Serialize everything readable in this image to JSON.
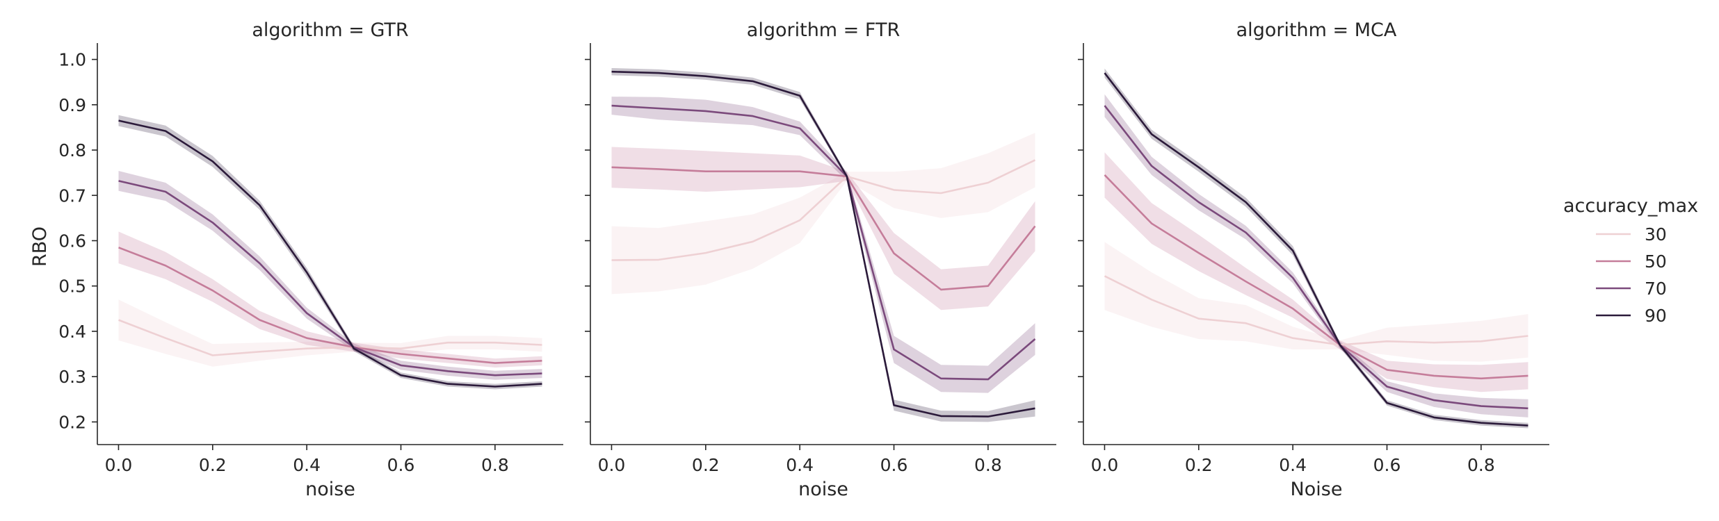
{
  "chart_data": {
    "type": "line",
    "x_name": "noise",
    "y_name": "RBO",
    "hue_name": "accuracy_max",
    "x": [
      0.0,
      0.1,
      0.2,
      0.3,
      0.4,
      0.5,
      0.6,
      0.7,
      0.8,
      0.9
    ],
    "ylim": [
      0.15,
      1.03
    ],
    "xlim": [
      -0.045,
      0.945
    ],
    "y_ticks": [
      0.2,
      0.3,
      0.4,
      0.5,
      0.6,
      0.7,
      0.8,
      0.9,
      1.0
    ],
    "y_tick_labels": [
      "0.2",
      "0.3",
      "0.4",
      "0.5",
      "0.6",
      "0.7",
      "0.8",
      "0.9",
      "1.0"
    ],
    "x_ticks": [
      0.0,
      0.2,
      0.4,
      0.6,
      0.8
    ],
    "x_tick_labels": [
      "0.0",
      "0.2",
      "0.4",
      "0.6",
      "0.8"
    ],
    "ylabel": "RBO",
    "legend": {
      "title": "accuracy_max",
      "placement": "right",
      "entries": [
        {
          "label": "30",
          "color": "#eed0d3"
        },
        {
          "label": "50",
          "color": "#c57d9a"
        },
        {
          "label": "70",
          "color": "#7b4a7c"
        },
        {
          "label": "90",
          "color": "#2b1a3a"
        }
      ]
    },
    "panels": [
      {
        "title": "algorithm = GTR",
        "xlabel": "noise",
        "series": [
          {
            "name": "30",
            "values": [
              0.425,
              0.385,
              0.347,
              0.355,
              0.362,
              0.365,
              0.362,
              0.375,
              0.375,
              0.37
            ],
            "band": [
              0.045,
              0.035,
              0.025,
              0.02,
              0.015,
              0.01,
              0.012,
              0.015,
              0.015,
              0.015
            ]
          },
          {
            "name": "50",
            "values": [
              0.585,
              0.545,
              0.49,
              0.425,
              0.385,
              0.365,
              0.35,
              0.34,
              0.33,
              0.335
            ],
            "band": [
              0.035,
              0.03,
              0.025,
              0.02,
              0.015,
              0.01,
              0.01,
              0.01,
              0.01,
              0.01
            ]
          },
          {
            "name": "70",
            "values": [
              0.732,
              0.708,
              0.64,
              0.55,
              0.44,
              0.365,
              0.325,
              0.312,
              0.303,
              0.307
            ],
            "band": [
              0.022,
              0.02,
              0.018,
              0.015,
              0.012,
              0.008,
              0.01,
              0.01,
              0.01,
              0.01
            ]
          },
          {
            "name": "90",
            "values": [
              0.865,
              0.842,
              0.775,
              0.678,
              0.53,
              0.362,
              0.303,
              0.284,
              0.278,
              0.284
            ],
            "band": [
              0.012,
              0.012,
              0.012,
              0.01,
              0.01,
              0.006,
              0.006,
              0.006,
              0.006,
              0.006
            ]
          }
        ]
      },
      {
        "title": "algorithm = FTR",
        "xlabel": "noise",
        "series": [
          {
            "name": "30",
            "values": [
              0.557,
              0.558,
              0.573,
              0.598,
              0.645,
              0.742,
              0.712,
              0.705,
              0.728,
              0.778
            ],
            "band": [
              0.075,
              0.07,
              0.07,
              0.06,
              0.05,
              0.01,
              0.04,
              0.055,
              0.065,
              0.06
            ]
          },
          {
            "name": "50",
            "values": [
              0.762,
              0.758,
              0.753,
              0.753,
              0.753,
              0.742,
              0.572,
              0.492,
              0.5,
              0.632
            ],
            "band": [
              0.045,
              0.045,
              0.045,
              0.04,
              0.035,
              0.01,
              0.045,
              0.045,
              0.045,
              0.055
            ]
          },
          {
            "name": "70",
            "values": [
              0.898,
              0.892,
              0.886,
              0.875,
              0.848,
              0.742,
              0.36,
              0.296,
              0.294,
              0.383
            ],
            "band": [
              0.02,
              0.025,
              0.025,
              0.02,
              0.015,
              0.01,
              0.03,
              0.03,
              0.03,
              0.035
            ]
          },
          {
            "name": "90",
            "values": [
              0.973,
              0.97,
              0.963,
              0.952,
              0.92,
              0.742,
              0.237,
              0.213,
              0.212,
              0.23
            ],
            "band": [
              0.008,
              0.008,
              0.008,
              0.008,
              0.008,
              0.005,
              0.012,
              0.012,
              0.012,
              0.018
            ]
          }
        ]
      },
      {
        "title": "algorithm = MCA",
        "xlabel": "Noise",
        "series": [
          {
            "name": "30",
            "values": [
              0.522,
              0.47,
              0.428,
              0.418,
              0.385,
              0.37,
              0.378,
              0.375,
              0.378,
              0.39
            ],
            "band": [
              0.075,
              0.06,
              0.045,
              0.04,
              0.025,
              0.01,
              0.03,
              0.04,
              0.045,
              0.048
            ]
          },
          {
            "name": "50",
            "values": [
              0.745,
              0.638,
              0.573,
              0.51,
              0.45,
              0.37,
              0.315,
              0.302,
              0.296,
              0.302
            ],
            "band": [
              0.05,
              0.045,
              0.04,
              0.03,
              0.02,
              0.01,
              0.02,
              0.025,
              0.03,
              0.03
            ]
          },
          {
            "name": "70",
            "values": [
              0.898,
              0.765,
              0.685,
              0.618,
              0.518,
              0.37,
              0.278,
              0.248,
              0.235,
              0.23
            ],
            "band": [
              0.025,
              0.02,
              0.018,
              0.015,
              0.012,
              0.008,
              0.012,
              0.015,
              0.018,
              0.02
            ]
          },
          {
            "name": "90",
            "values": [
              0.97,
              0.835,
              0.762,
              0.685,
              0.578,
              0.37,
              0.242,
              0.21,
              0.198,
              0.192
            ],
            "band": [
              0.01,
              0.01,
              0.01,
              0.01,
              0.01,
              0.006,
              0.006,
              0.006,
              0.006,
              0.006
            ]
          }
        ]
      }
    ]
  }
}
